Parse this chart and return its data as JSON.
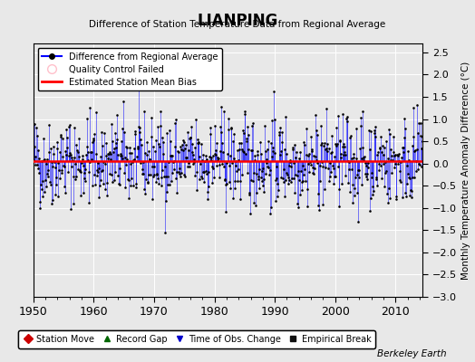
{
  "title": "LIANPING",
  "subtitle": "Difference of Station Temperature Data from Regional Average",
  "ylabel_right": "Monthly Temperature Anomaly Difference (°C)",
  "xlim": [
    1950,
    2014.5
  ],
  "ylim": [
    -3,
    2.7
  ],
  "yticks": [
    -3,
    -2.5,
    -2,
    -1.5,
    -1,
    -0.5,
    0,
    0.5,
    1,
    1.5,
    2,
    2.5
  ],
  "xticks": [
    1950,
    1960,
    1970,
    1980,
    1990,
    2000,
    2010
  ],
  "bias_value": 0.05,
  "line_color": "#0000FF",
  "bias_color": "#FF0000",
  "dot_color": "#000000",
  "background_color": "#E8E8E8",
  "watermark": "Berkeley Earth",
  "seed": 42,
  "n_months": 780,
  "start_year": 1950.0,
  "sigma": 0.65,
  "bottom_legend": [
    {
      "label": "Station Move",
      "color": "#CC0000",
      "marker": "D"
    },
    {
      "label": "Record Gap",
      "color": "#006600",
      "marker": "^"
    },
    {
      "label": "Time of Obs. Change",
      "color": "#0000CC",
      "marker": "v"
    },
    {
      "label": "Empirical Break",
      "color": "#111111",
      "marker": "s"
    }
  ]
}
